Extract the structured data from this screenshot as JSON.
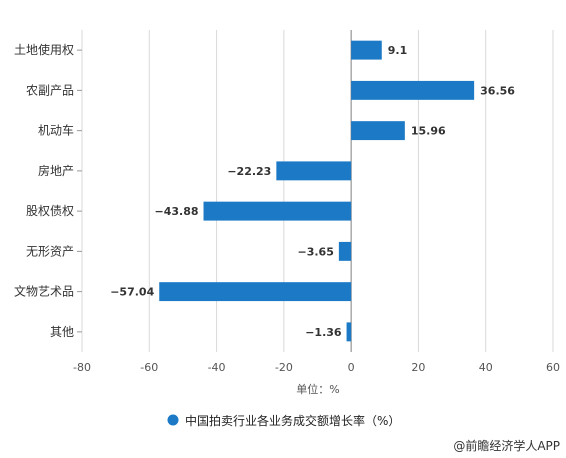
{
  "chart_data": {
    "type": "bar",
    "orientation": "horizontal",
    "categories": [
      "土地使用权",
      "农副产品",
      "机动车",
      "房地产",
      "股权债权",
      "无形资产",
      "文物艺术品",
      "其他"
    ],
    "series": [
      {
        "name": "中国拍卖行业各业务成交额增长率（%）",
        "values": [
          9.1,
          36.56,
          15.96,
          -22.23,
          -43.88,
          -3.65,
          -57.04,
          -1.36
        ],
        "color": "#1b79c6"
      }
    ],
    "data_labels": [
      "9.1",
      "36.56",
      "15.96",
      "−22.23",
      "−43.88",
      "−3.65",
      "−57.04",
      "−1.36"
    ],
    "xlim": [
      -80,
      60
    ],
    "ticks": [
      -80,
      -60,
      -40,
      -20,
      0,
      20,
      40,
      60
    ],
    "xlabel": "单位：%",
    "grid": true,
    "legend_position": "bottom"
  },
  "source": "@前瞻经济学人APP"
}
